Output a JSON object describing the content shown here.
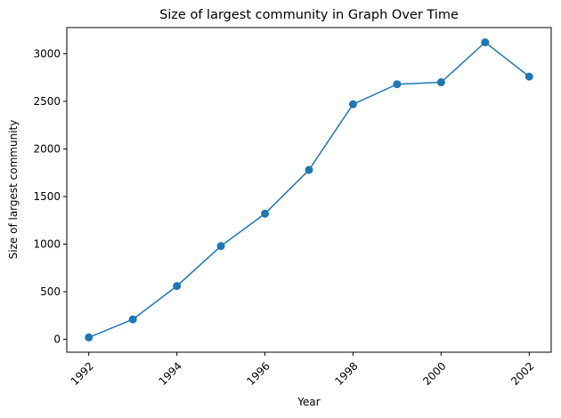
{
  "chart_data": {
    "type": "line",
    "title": "Size of largest community in Graph Over Time",
    "xlabel": "Year",
    "ylabel": "Size of largest community",
    "x": [
      1992,
      1993,
      1994,
      1995,
      1996,
      1997,
      1998,
      1999,
      2000,
      2001,
      2002
    ],
    "series": [
      {
        "values": [
          20,
          210,
          560,
          980,
          1320,
          1780,
          2470,
          2680,
          2700,
          3120,
          2760
        ],
        "color": "#1f77b4",
        "marker": "circle"
      }
    ],
    "xticks": [
      "1992",
      "1994",
      "1996",
      "1998",
      "2000",
      "2002"
    ],
    "xtick_rotation_deg": 45,
    "yticks": [
      "0",
      "500",
      "1000",
      "1500",
      "2000",
      "2500",
      "3000"
    ],
    "xlim": [
      1991.5,
      2002.5
    ],
    "ylim": [
      -135,
      3275
    ],
    "grid": false
  }
}
